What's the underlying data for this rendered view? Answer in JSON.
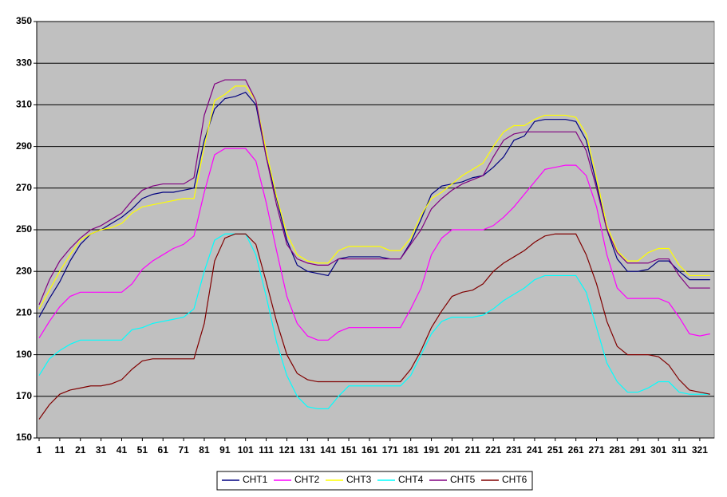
{
  "chart_data": {
    "type": "line",
    "x": [
      1,
      6,
      11,
      16,
      21,
      26,
      31,
      36,
      41,
      46,
      51,
      56,
      61,
      66,
      71,
      76,
      81,
      86,
      91,
      96,
      101,
      106,
      111,
      116,
      121,
      126,
      131,
      136,
      141,
      146,
      151,
      156,
      161,
      166,
      171,
      176,
      181,
      186,
      191,
      196,
      201,
      206,
      211,
      216,
      221,
      226,
      231,
      236,
      241,
      246,
      251,
      256,
      261,
      266,
      271,
      276,
      281,
      286,
      291,
      296,
      301,
      306,
      311,
      316,
      321,
      326
    ],
    "xlim": [
      1,
      328
    ],
    "xticks": [
      1,
      11,
      21,
      31,
      41,
      51,
      61,
      71,
      81,
      91,
      101,
      111,
      121,
      131,
      141,
      151,
      161,
      171,
      181,
      191,
      201,
      211,
      221,
      231,
      241,
      251,
      261,
      271,
      281,
      291,
      301,
      311,
      321
    ],
    "ylim": [
      150,
      350
    ],
    "yticks": [
      150,
      170,
      190,
      210,
      230,
      250,
      270,
      290,
      310,
      330,
      350
    ],
    "grid": true,
    "legend": "bottom",
    "series": [
      {
        "name": "CHT1",
        "color": "#000080",
        "values": [
          208,
          217,
          225,
          235,
          243,
          248,
          250,
          253,
          256,
          260,
          265,
          267,
          268,
          268,
          269,
          270,
          293,
          308,
          313,
          314,
          316,
          310,
          285,
          265,
          245,
          233,
          230,
          229,
          228,
          236,
          237,
          237,
          237,
          237,
          236,
          236,
          244,
          255,
          267,
          271,
          272,
          273,
          275,
          276,
          280,
          285,
          293,
          295,
          302,
          303,
          303,
          303,
          302,
          293,
          272,
          250,
          236,
          230,
          230,
          231,
          235,
          235,
          230,
          226,
          226,
          226
        ]
      },
      {
        "name": "CHT2",
        "color": "#ff00ff",
        "values": [
          198,
          206,
          213,
          218,
          220,
          220,
          220,
          220,
          220,
          224,
          231,
          235,
          238,
          241,
          243,
          247,
          268,
          286,
          289,
          289,
          289,
          283,
          263,
          240,
          218,
          205,
          199,
          197,
          197,
          201,
          203,
          203,
          203,
          203,
          203,
          203,
          212,
          222,
          238,
          246,
          250,
          250,
          250,
          250,
          252,
          256,
          261,
          267,
          273,
          279,
          280,
          281,
          281,
          276,
          261,
          238,
          222,
          217,
          217,
          217,
          217,
          215,
          208,
          200,
          199,
          200
        ]
      },
      {
        "name": "CHT3",
        "color": "#ffff00",
        "values": [
          212,
          221,
          230,
          238,
          245,
          248,
          250,
          251,
          253,
          258,
          261,
          262,
          263,
          264,
          265,
          265,
          290,
          312,
          315,
          319,
          319,
          312,
          288,
          266,
          248,
          238,
          235,
          234,
          234,
          240,
          242,
          242,
          242,
          242,
          240,
          240,
          246,
          257,
          265,
          268,
          272,
          276,
          279,
          282,
          290,
          297,
          300,
          300,
          303,
          305,
          305,
          305,
          304,
          296,
          275,
          252,
          240,
          235,
          235,
          239,
          241,
          241,
          233,
          228,
          228,
          228
        ]
      },
      {
        "name": "CHT4",
        "color": "#00ffff",
        "values": [
          180,
          188,
          192,
          195,
          197,
          197,
          197,
          197,
          197,
          202,
          203,
          205,
          206,
          207,
          208,
          212,
          230,
          245,
          248,
          248,
          248,
          238,
          218,
          196,
          180,
          170,
          165,
          164,
          164,
          170,
          175,
          175,
          175,
          175,
          175,
          175,
          180,
          190,
          200,
          206,
          208,
          208,
          208,
          209,
          212,
          216,
          219,
          222,
          226,
          228,
          228,
          228,
          228,
          220,
          203,
          186,
          177,
          172,
          172,
          174,
          177,
          177,
          172,
          171,
          171,
          171
        ]
      },
      {
        "name": "CHT5",
        "color": "#800080",
        "values": [
          214,
          226,
          235,
          241,
          246,
          250,
          252,
          255,
          258,
          264,
          269,
          271,
          272,
          272,
          272,
          275,
          305,
          320,
          322,
          322,
          322,
          312,
          285,
          262,
          243,
          236,
          234,
          233,
          233,
          236,
          236,
          236,
          236,
          236,
          236,
          236,
          243,
          250,
          260,
          265,
          269,
          272,
          274,
          276,
          285,
          293,
          296,
          297,
          297,
          297,
          297,
          297,
          297,
          288,
          270,
          250,
          239,
          234,
          234,
          234,
          236,
          236,
          228,
          222,
          222,
          222
        ]
      },
      {
        "name": "CHT6",
        "color": "#800000",
        "values": [
          159,
          166,
          171,
          173,
          174,
          175,
          175,
          176,
          178,
          183,
          187,
          188,
          188,
          188,
          188,
          188,
          205,
          235,
          246,
          248,
          248,
          243,
          225,
          206,
          190,
          181,
          178,
          177,
          177,
          177,
          177,
          177,
          177,
          177,
          177,
          177,
          183,
          192,
          203,
          211,
          218,
          220,
          221,
          224,
          230,
          234,
          237,
          240,
          244,
          247,
          248,
          248,
          248,
          238,
          224,
          206,
          194,
          190,
          190,
          190,
          189,
          185,
          178,
          173,
          172,
          171
        ]
      }
    ]
  }
}
